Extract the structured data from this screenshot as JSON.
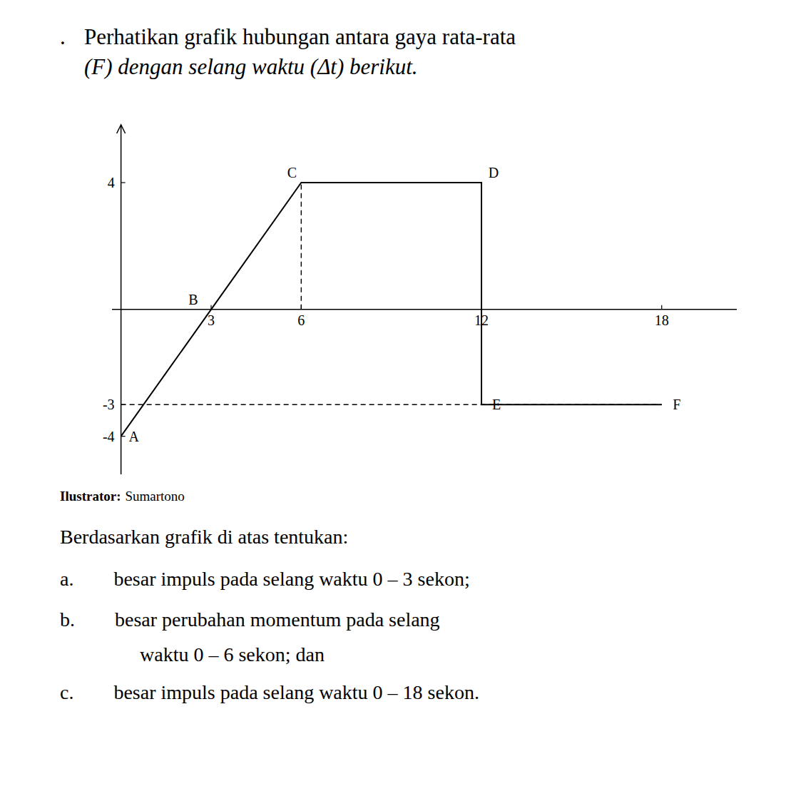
{
  "chart_data": {
    "type": "line",
    "title_prefix": ".",
    "title": "Perhatikan grafik hubungan antara gaya rata-rata",
    "subtitle": "(F) dengan selang waktu (Δt) berikut.",
    "series": [
      {
        "x": [
          0,
          3,
          6,
          12,
          12,
          18
        ],
        "values": [
          -4,
          0,
          4,
          4,
          -3,
          -3
        ],
        "color": "#000000",
        "line_style": "solid"
      },
      {
        "x": [
          0,
          18
        ],
        "values": [
          -3,
          -3
        ],
        "color": "#000000",
        "line_style": "dashed"
      },
      {
        "x": [
          6,
          6
        ],
        "values": [
          0,
          4
        ],
        "color": "#000000",
        "line_style": "dashed"
      }
    ],
    "annotations": [
      {
        "text": "A",
        "x": 0,
        "y": -4
      },
      {
        "text": "B",
        "x": 3,
        "y": 0
      },
      {
        "text": "C",
        "x": 6,
        "y": 4
      },
      {
        "text": "D",
        "x": 12,
        "y": 4
      },
      {
        "text": "E",
        "x": 12,
        "y": -3
      },
      {
        "text": "F",
        "x": 18,
        "y": -3
      }
    ],
    "xlim": [
      -0.3,
      20.5
    ],
    "ylim": [
      -5.2,
      5.8
    ],
    "xticks": [
      3,
      6,
      12,
      18
    ],
    "yticks": [
      -4,
      -3,
      4
    ],
    "grid": false,
    "credit": {
      "label": "Ilustrator:",
      "name": "Sumartono"
    },
    "notes": [
      "Berdasarkan grafik di atas tentukan:",
      "a.  besar impuls pada selang waktu 0 – 3 sekon;",
      "b.  besar perubahan momentum pada selang",
      "    waktu 0 – 6 sekon; dan",
      "c.  besar impuls pada selang waktu 0 – 18 sekon."
    ]
  }
}
